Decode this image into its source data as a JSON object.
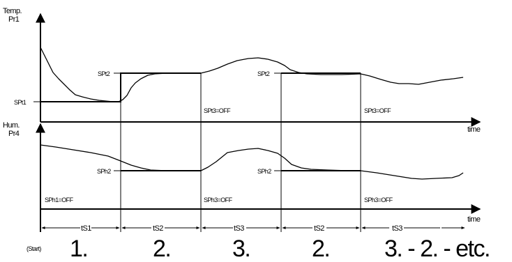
{
  "top_chart": {
    "ylabel_line1": "Temp.",
    "ylabel_line2": "Pr1",
    "xlabel": "time",
    "labels": {
      "spt1": "SPt1",
      "spt2_first": "SPt2",
      "spt2_second": "SPt2",
      "spt3_off_first": "SPt3=OFF",
      "spt3_off_second": "SPt3=OFF"
    }
  },
  "bottom_chart": {
    "ylabel_line1": "Hum.",
    "ylabel_line2": "Pr4",
    "xlabel": "time",
    "labels": {
      "sph2_first": "SPh2",
      "sph2_second": "SPh2",
      "sph1_off": "SPh1=OFF",
      "sph3_off_first": "SPh3=OFF",
      "sph3_off_second": "SPh3=OFF"
    }
  },
  "phase_timeline": {
    "segments": [
      "tS1",
      "tS2",
      "tS3",
      "tS2",
      "tS3"
    ]
  },
  "start_label": "(Start)",
  "phase_numbers": [
    "1.",
    "2.",
    "3.",
    "2.",
    "3. - 2. - etc."
  ]
}
